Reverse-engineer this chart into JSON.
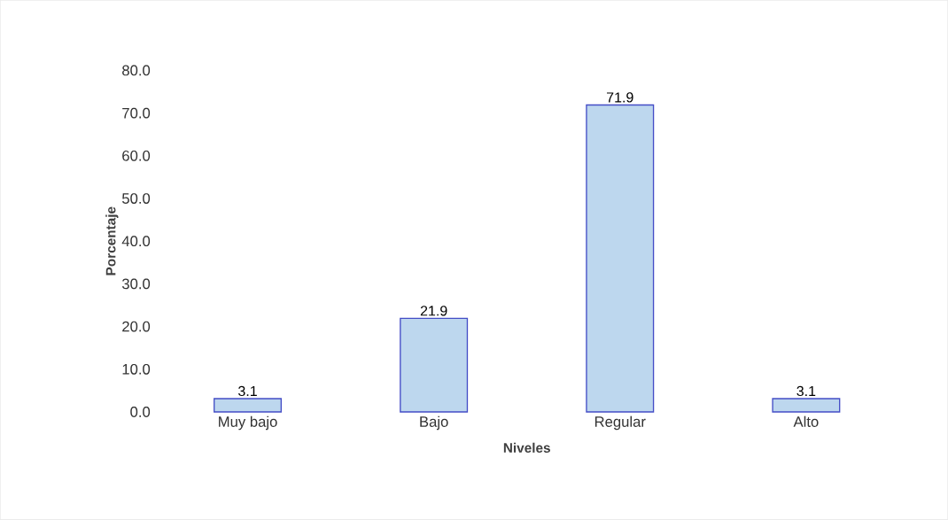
{
  "chart_data": {
    "type": "bar",
    "xlabel": "Niveles",
    "ylabel": "Porcentaje",
    "categories": [
      "Muy bajo",
      "Bajo",
      "Regular",
      "Alto"
    ],
    "values": [
      3.1,
      21.9,
      71.9,
      3.1
    ],
    "color": "#bdd7ee",
    "ylim": [
      0,
      80
    ],
    "yticks": [
      {
        "value": 0,
        "label": "0.0"
      },
      {
        "value": 10,
        "label": "10.0"
      },
      {
        "value": 20,
        "label": "20.0"
      },
      {
        "value": 30,
        "label": "30.0"
      },
      {
        "value": 40,
        "label": "40.0"
      },
      {
        "value": 50,
        "label": "50.0"
      },
      {
        "value": 60,
        "label": "60.0"
      },
      {
        "value": 70,
        "label": "70.0"
      },
      {
        "value": 80,
        "label": "80.0"
      }
    ],
    "data_labels": true,
    "grid": false
  }
}
